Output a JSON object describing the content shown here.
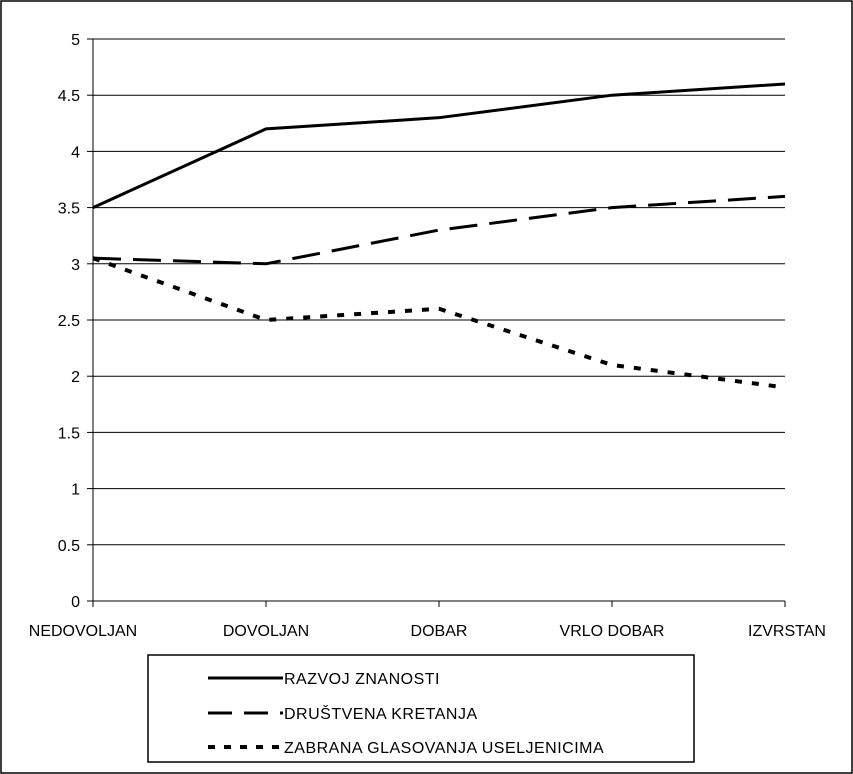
{
  "chart_data": {
    "type": "line",
    "title": "",
    "xlabel": "",
    "ylabel": "",
    "categories": [
      "NEDOVOLJAN",
      "DOVOLJAN",
      "DOBAR",
      "VRLO DOBAR",
      "IZVRSTAN"
    ],
    "ylim": [
      0,
      5
    ],
    "yticks": [
      "0",
      "0.5",
      "1",
      "1.5",
      "2",
      "2.5",
      "3",
      "3.5",
      "4",
      "4.5",
      "5"
    ],
    "grid": true,
    "legend_position": "bottom",
    "series": [
      {
        "name": "RAZVOJ ZNANOSTI",
        "values": [
          3.5,
          4.2,
          4.3,
          4.5,
          4.6
        ],
        "style": "solid",
        "color": "#000000"
      },
      {
        "name": "DRUŠTVENA KRETANJA",
        "values": [
          3.05,
          3.0,
          3.3,
          3.5,
          3.6
        ],
        "style": "dashed",
        "color": "#000000"
      },
      {
        "name": "ZABRANA GLASOVANJA USELJENICIMA",
        "values": [
          3.05,
          2.5,
          2.6,
          2.1,
          1.9
        ],
        "style": "dotted",
        "color": "#000000"
      }
    ]
  }
}
